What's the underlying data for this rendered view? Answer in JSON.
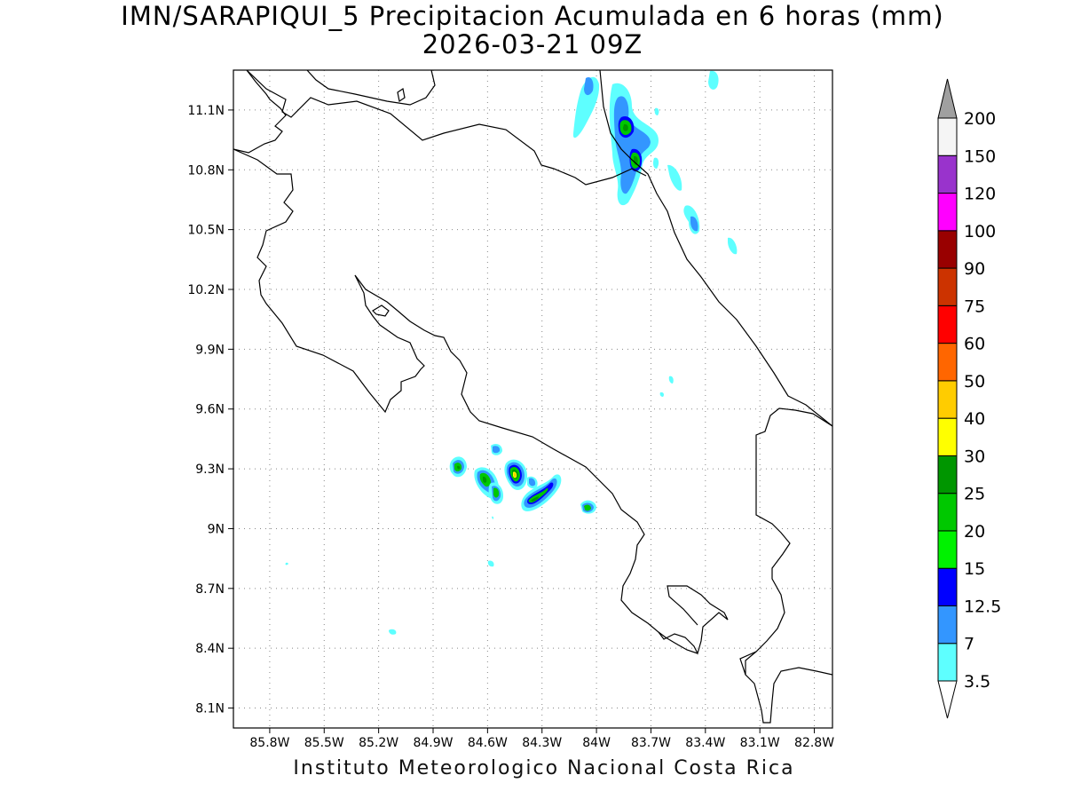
{
  "title": {
    "line1": "IMN/SARAPIQUI_5 Precipitacion Acumulada en 6 horas (mm)",
    "line2": "2026-03-21 09Z"
  },
  "credit": "Instituto Meteorologico Nacional Costa Rica",
  "map": {
    "lon_range": [
      -86.0,
      -82.7
    ],
    "lat_range": [
      8.0,
      11.3
    ],
    "lon_ticks": [
      "85.8W",
      "85.5W",
      "85.2W",
      "84.9W",
      "84.6W",
      "84.3W",
      "84W",
      "83.7W",
      "83.4W",
      "83.1W",
      "82.8W"
    ],
    "lat_ticks": [
      "11.1N",
      "10.8N",
      "10.5N",
      "10.2N",
      "9.9N",
      "9.6N",
      "9.3N",
      "9N",
      "8.7N",
      "8.4N",
      "8.1N"
    ],
    "grid": "dotted"
  },
  "colorbar": {
    "unit": "mm",
    "levels": [
      "3.5",
      "7",
      "12.5",
      "15",
      "20",
      "25",
      "30",
      "40",
      "50",
      "60",
      "75",
      "90",
      "100",
      "120",
      "150",
      "200"
    ],
    "colors": [
      "#5effff",
      "#3396ff",
      "#0000ff",
      "#00f200",
      "#00c800",
      "#009600",
      "#ffff00",
      "#ffcc00",
      "#ff6600",
      "#ff0000",
      "#cc3300",
      "#990000",
      "#ff00ff",
      "#9933cc",
      "#f5f5f5",
      "#a0a0a0"
    ]
  }
}
